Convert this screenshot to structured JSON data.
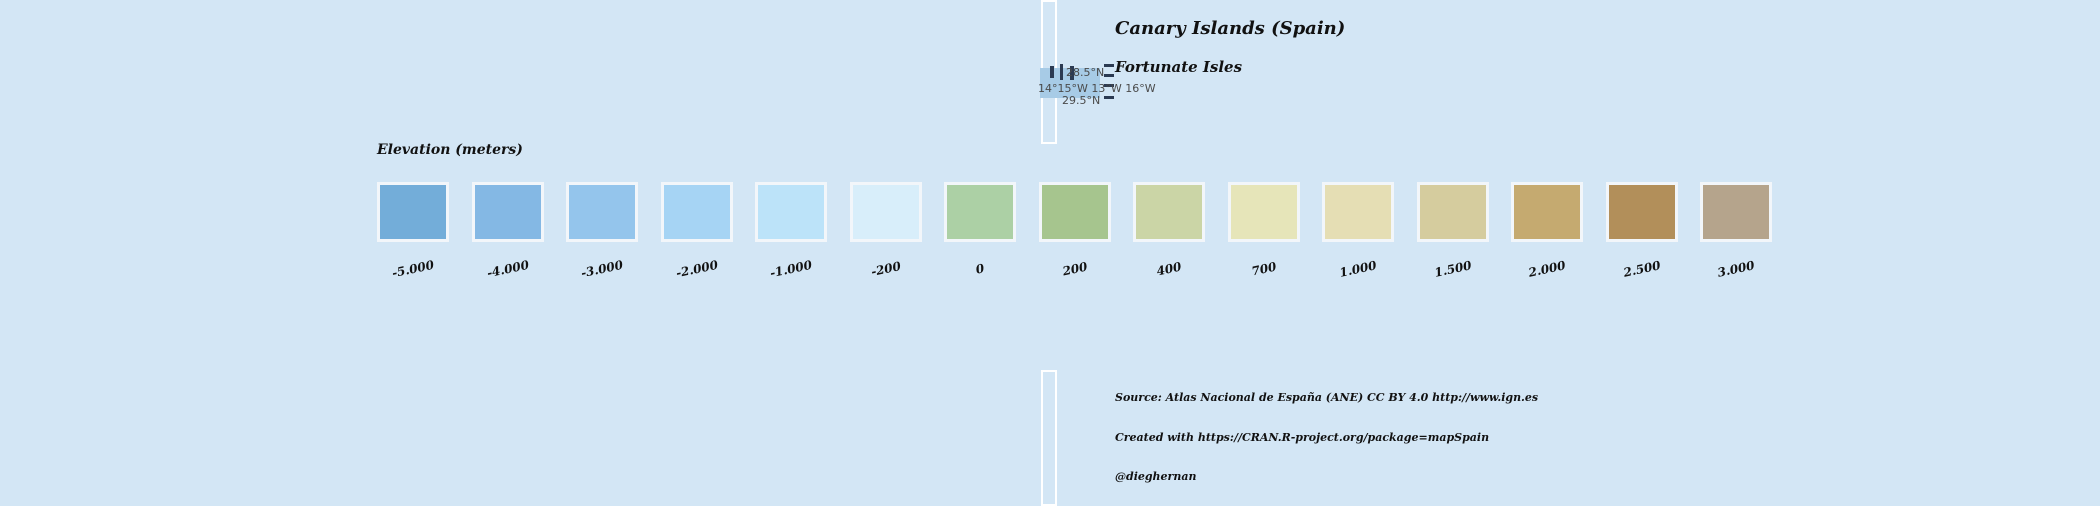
{
  "title": "Canary Islands (Spain)",
  "subtitle": "Fortunate Isles",
  "legend": {
    "title": "Elevation (meters)",
    "items": [
      {
        "label": "-5.000",
        "color": "#73add9"
      },
      {
        "label": "-4.000",
        "color": "#84b8e4"
      },
      {
        "label": "-3.000",
        "color": "#94c5ec"
      },
      {
        "label": "-2.000",
        "color": "#a6d4f4"
      },
      {
        "label": "-1.000",
        "color": "#bce3f9"
      },
      {
        "label": "-200",
        "color": "#d8eefa"
      },
      {
        "label": "0",
        "color": "#acd0a5"
      },
      {
        "label": "200",
        "color": "#a6c58e"
      },
      {
        "label": "400",
        "color": "#cbd5a6"
      },
      {
        "label": "700",
        "color": "#e6e5b9"
      },
      {
        "label": "1.000",
        "color": "#e5deb4"
      },
      {
        "label": "1.500",
        "color": "#d5cc9e"
      },
      {
        "label": "2.000",
        "color": "#c5aa70"
      },
      {
        "label": "2.500",
        "color": "#b28f5a"
      },
      {
        "label": "3.000",
        "color": "#b5a48c"
      }
    ]
  },
  "map_labels": {
    "lat_top": "28.5°N",
    "lat_bottom": "29.5°N",
    "lon": "14°15°W 13°W 16°W"
  },
  "credits": {
    "source": "Source: Atlas Nacional de España (ANE) CC BY 4.0 http://www.ign.es",
    "created": "Created with https://CRAN.R-project.org/package=mapSpain",
    "author": "@dieghernan"
  }
}
